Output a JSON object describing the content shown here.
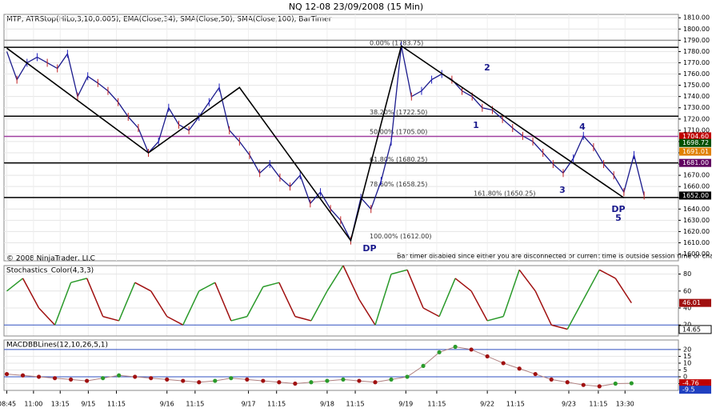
{
  "header": {
    "title": "NQ 12-08  23/09/2008 (15 Min)"
  },
  "footer_notes": [
    "© 2008 NinjaTrader, LLC",
    "Bar timer disabled since either you are disconnected or current time is outside session time or chart end date"
  ],
  "chart_data": [
    {
      "type": "line",
      "title": "MTP, ATRStop(HiLo,3,10,0.005), EMA(Close,34), SMA(Close,50), SMA(Close,100), BarTimer",
      "color": "#1a1a8c",
      "x": [
        1,
        4.6,
        8.2,
        11.8,
        15.4,
        19,
        22.6,
        26.2,
        29.8,
        33.4,
        37,
        40.6,
        44.2,
        47.8,
        51.4,
        55,
        58.6,
        62.2,
        65.8,
        69.4,
        73,
        76.6,
        80.2,
        83.8,
        87.4,
        91,
        94.6,
        98.2,
        101.8,
        105.4,
        109,
        112.6,
        116.2,
        119.8,
        123.4,
        127,
        130.6,
        134.2,
        137.8,
        141.4,
        145,
        148.6,
        152.2,
        155.8,
        159.4,
        163,
        166.6,
        170.2,
        173.8,
        177.4,
        181,
        184.6,
        188.2,
        191.8,
        195.4,
        199,
        202.6,
        206.2,
        209.8,
        213.4,
        217,
        220.6,
        224.2,
        227.8
      ],
      "values": [
        1780,
        1755,
        1770,
        1775,
        1770,
        1765,
        1778,
        1740,
        1758,
        1752,
        1745,
        1735,
        1722,
        1712,
        1690,
        1700,
        1730,
        1715,
        1710,
        1722,
        1735,
        1748,
        1710,
        1700,
        1688,
        1672,
        1680,
        1668,
        1660,
        1670,
        1645,
        1655,
        1640,
        1630,
        1612,
        1650,
        1640,
        1665,
        1700,
        1785,
        1740,
        1745,
        1755,
        1760,
        1755,
        1745,
        1740,
        1730,
        1728,
        1720,
        1712,
        1705,
        1700,
        1690,
        1680,
        1672,
        1685,
        1705,
        1695,
        1680,
        1670,
        1655,
        1688,
        1652
      ],
      "zigzag": {
        "color": "#000000",
        "x": [
          1,
          51.4,
          83.8,
          123.4,
          141.4,
          220.6
        ],
        "values": [
          1783,
          1690,
          1748,
          1612,
          1785,
          1650
        ]
      },
      "lines": [
        {
          "value": 1790,
          "color": "#999999"
        },
        {
          "value": 1783.75,
          "color": "#000000"
        },
        {
          "value": 1722.5,
          "color": "#000000"
        },
        {
          "value": 1704.6,
          "color": "#a040a0"
        },
        {
          "value": 1681,
          "color": "#000000"
        },
        {
          "value": 1650.25,
          "color": "#000000"
        }
      ],
      "fib_labels": [
        {
          "value": 1783.75,
          "label": "0.00% (1783.75)"
        },
        {
          "value": 1722.5,
          "label": "38.20% (1722.50)"
        },
        {
          "value": 1705,
          "label": "50.00% (1705.00)"
        },
        {
          "value": 1680.25,
          "label": "61.80% (1680.25)"
        },
        {
          "value": 1658.25,
          "label": "78.60% (1658.25)"
        },
        {
          "value": 1612,
          "label": "100.00% (1612.00)"
        },
        {
          "value": 1650.25,
          "label": "161.80% (1650.25)"
        }
      ],
      "annotations": [
        "1",
        "2",
        "3",
        "4",
        "5",
        "DP",
        "DP"
      ],
      "price_labels": [
        {
          "value": 1704.6,
          "label": "1704.60",
          "color": "#c00000"
        },
        {
          "value": 1698.72,
          "label": "1698.72",
          "color": "#005000"
        },
        {
          "value": 1691.01,
          "label": "1691.01",
          "color": "#e08000"
        },
        {
          "value": 1681,
          "label": "1681.00",
          "color": "#600060"
        },
        {
          "value": 1652,
          "label": "1652.00",
          "color": "#000000"
        }
      ],
      "xlim": [
        0,
        240
      ],
      "ylim": [
        1594,
        1813
      ],
      "yticks": [
        {
          "value": 1600,
          "label": "1600.00"
        },
        {
          "value": 1610,
          "label": "1610.00"
        },
        {
          "value": 1620,
          "label": "1620.00"
        },
        {
          "value": 1630,
          "label": "1630.00"
        },
        {
          "value": 1640,
          "label": "1640.00"
        },
        {
          "value": 1650,
          "label": "1650.00"
        },
        {
          "value": 1660,
          "label": "1660.00"
        },
        {
          "value": 1670,
          "label": "1670.00"
        },
        {
          "value": 1680,
          "label": "1680.00"
        },
        {
          "value": 1690,
          "label": "1690.00"
        },
        {
          "value": 1700,
          "label": "1700.00"
        },
        {
          "value": 1710,
          "label": "1710.00"
        },
        {
          "value": 1720,
          "label": "1720.00"
        },
        {
          "value": 1730,
          "label": "1730.00"
        },
        {
          "value": 1740,
          "label": "1740.00"
        },
        {
          "value": 1750,
          "label": "1750.00"
        },
        {
          "value": 1760,
          "label": "1760.00"
        },
        {
          "value": 1770,
          "label": "1770.00"
        },
        {
          "value": 1780,
          "label": "1780.00"
        },
        {
          "value": 1790,
          "label": "1790.00"
        },
        {
          "value": 1800,
          "label": "1800.00"
        },
        {
          "value": 1810,
          "label": "1810.00"
        }
      ],
      "xticks": [
        {
          "value": 1,
          "label": "08:45"
        },
        {
          "value": 10.5,
          "label": "11:00"
        },
        {
          "value": 20,
          "label": "13:15"
        },
        {
          "value": 30,
          "label": "9/15"
        },
        {
          "value": 40,
          "label": "11:15"
        },
        {
          "value": 58,
          "label": "9/16"
        },
        {
          "value": 68,
          "label": "11:15"
        },
        {
          "value": 87,
          "label": "9/17"
        },
        {
          "value": 97,
          "label": "11:15"
        },
        {
          "value": 115,
          "label": "9/18"
        },
        {
          "value": 125,
          "label": "11:15"
        },
        {
          "value": 143,
          "label": "9/19"
        },
        {
          "value": 154,
          "label": "11:15"
        },
        {
          "value": 172,
          "label": "9/22"
        },
        {
          "value": 182,
          "label": "11:15"
        },
        {
          "value": 201,
          "label": "9/23"
        },
        {
          "value": 211.5,
          "label": "11:15"
        },
        {
          "value": 221,
          "label": "13:30"
        }
      ]
    },
    {
      "type": "oscillator",
      "title": "Stochastics_Color(4,3,3)",
      "rise_color": "#2a9a2a",
      "fall_color": "#a01010",
      "x": [
        1,
        6.7,
        12.4,
        18.1,
        23.8,
        29.5,
        35.2,
        40.9,
        46.6,
        52.3,
        58,
        63.7,
        69.4,
        75.1,
        80.8,
        86.5,
        92.2,
        97.9,
        103.6,
        109.3,
        115,
        120.7,
        126.4,
        132.1,
        137.8,
        143.5,
        149.2,
        154.9,
        160.6,
        166.3,
        172,
        177.7,
        183.4,
        189.1,
        194.8,
        200.5,
        206.2,
        211.9,
        217.6,
        223.3
      ],
      "values": [
        60,
        75,
        40,
        20,
        70,
        75,
        30,
        25,
        70,
        60,
        30,
        20,
        60,
        70,
        25,
        30,
        65,
        70,
        30,
        25,
        60,
        90,
        50,
        20,
        80,
        85,
        40,
        30,
        75,
        60,
        25,
        30,
        85,
        60,
        20,
        15,
        50,
        85,
        75,
        46
      ],
      "price_labels": [
        {
          "value": 46.01,
          "label": "46.01",
          "color": "#a01010"
        },
        {
          "value": 14.65,
          "label": "14.65",
          "color": "#ffffff"
        }
      ],
      "xlim": [
        0,
        240
      ],
      "ylim": [
        7,
        90
      ],
      "yticks": [
        20,
        40,
        60,
        80
      ]
    },
    {
      "type": "dots",
      "title": "MACDBBLines(12,10,26,5,1)",
      "rise_color": "#2a9a2a",
      "fall_color": "#a01010",
      "x": [
        1,
        6.7,
        12.4,
        18.1,
        23.8,
        29.5,
        35.2,
        40.9,
        46.6,
        52.3,
        58,
        63.7,
        69.4,
        75.1,
        80.8,
        86.5,
        92.2,
        97.9,
        103.6,
        109.3,
        115,
        120.7,
        126.4,
        132.1,
        137.8,
        143.5,
        149.2,
        154.9,
        160.6,
        166.3,
        172,
        177.7,
        183.4,
        189.1,
        194.8,
        200.5,
        206.2,
        211.9,
        217.6,
        223.3
      ],
      "values": [
        2,
        1,
        0,
        -1,
        -2,
        -3,
        -1,
        1,
        0,
        -1,
        -2,
        -3,
        -4,
        -3,
        -1,
        -2,
        -3,
        -4,
        -5,
        -4,
        -3,
        -2,
        -3,
        -4,
        -2,
        0,
        8,
        18,
        22,
        20,
        15,
        10,
        6,
        2,
        -2,
        -4,
        -6,
        -7,
        -5,
        -4.76
      ],
      "price_labels": [
        {
          "value": -4.76,
          "label": "-4.76",
          "color": "#c00000"
        },
        {
          "value": -9.5,
          "label": "-9.5",
          "color": "#2040c0"
        }
      ],
      "xlim": [
        0,
        240
      ],
      "ylim": [
        -10,
        27
      ],
      "yticks": [
        -5,
        0,
        5,
        10,
        15,
        20
      ]
    }
  ]
}
